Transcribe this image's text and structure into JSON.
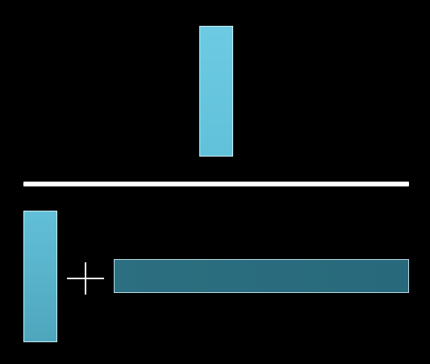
{
  "diagram": {
    "type": "fraction-of-bars",
    "colors": {
      "background": "#000000",
      "light_bar": "#66c6df",
      "dark_bar": "#2a6d7e",
      "fraction_line": "#ffffff",
      "plus_sign": "#f2f2f2"
    },
    "parts": {
      "numerator": "vertical-bar",
      "denominator": [
        "vertical-bar",
        "plus-sign",
        "horizontal-bar"
      ]
    }
  }
}
